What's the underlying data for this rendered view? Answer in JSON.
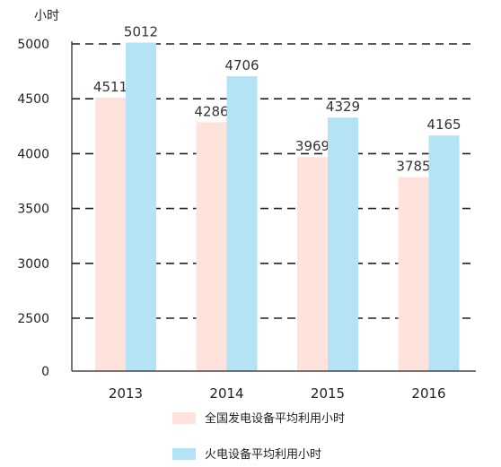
{
  "chart_data": {
    "type": "bar",
    "ylabel": "小时",
    "categories": [
      "2013",
      "2014",
      "2015",
      "2016"
    ],
    "yticks": [
      "0",
      "2500",
      "3000",
      "3500",
      "4000",
      "4500",
      "5000"
    ],
    "series": [
      {
        "name": "全国发电设备平均利用小时",
        "values": [
          4511,
          4286,
          3969,
          3785
        ],
        "labels": [
          "4511",
          "4286",
          "3969",
          "3785"
        ],
        "color": "#fde3dc"
      },
      {
        "name": "火电设备平均利用小时",
        "values": [
          5012,
          4706,
          4329,
          4165
        ],
        "labels": [
          "5012",
          "4706",
          "4329",
          "4165"
        ],
        "color": "#b3e3f4"
      }
    ],
    "grid": "dashed horizontal",
    "legend": "bottom"
  }
}
